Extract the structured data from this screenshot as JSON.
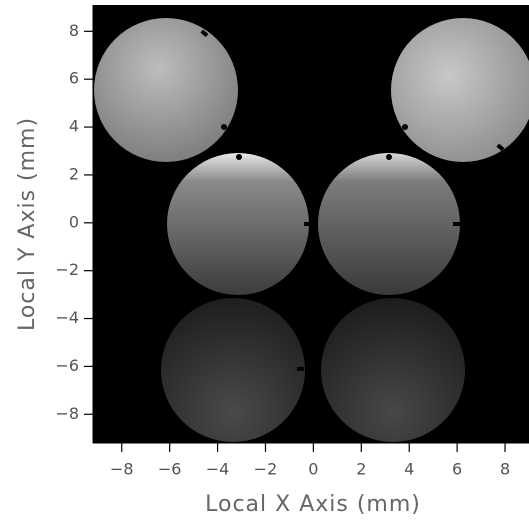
{
  "chart_data": {
    "type": "image",
    "x_label": "Local X Axis (mm)",
    "y_label": "Local Y Axis (mm)",
    "xlim": [
      -9.2,
      9.0
    ],
    "ylim": [
      -9.2,
      9.1
    ],
    "xticks": [
      {
        "value": -8,
        "label": "−8"
      },
      {
        "value": -6,
        "label": "−6"
      },
      {
        "value": -4,
        "label": "−4"
      },
      {
        "value": -2,
        "label": "−2"
      },
      0,
      2,
      4,
      6,
      8
    ],
    "yticks": [
      {
        "value": -8,
        "label": "−8"
      },
      {
        "value": -6,
        "label": "−6"
      },
      {
        "value": -4,
        "label": "−4"
      },
      {
        "value": -2,
        "label": "−2"
      },
      0,
      2,
      4,
      6,
      8
    ]
  }
}
